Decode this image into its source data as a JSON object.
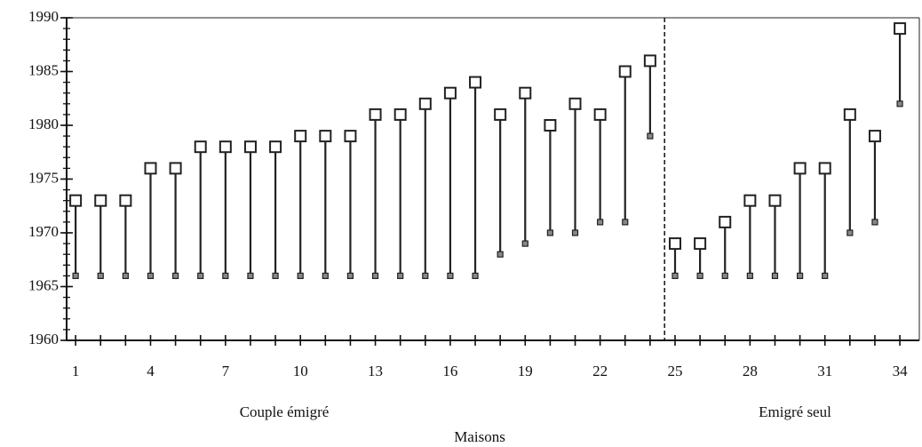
{
  "chart_data": {
    "type": "range",
    "x": [
      1,
      2,
      3,
      4,
      5,
      6,
      7,
      8,
      9,
      10,
      11,
      12,
      13,
      14,
      15,
      16,
      17,
      18,
      19,
      20,
      21,
      22,
      23,
      24,
      25,
      26,
      27,
      28,
      29,
      30,
      31,
      32,
      33,
      34
    ],
    "series": [
      {
        "color": "#222",
        "values": [
          1966,
          1966,
          1966,
          1966,
          1966,
          1966,
          1966,
          1966,
          1966,
          1966,
          1966,
          1966,
          1966,
          1966,
          1966,
          1966,
          1966,
          1968,
          1969,
          1970,
          1970,
          1971,
          1971,
          1979,
          1966,
          1966,
          1966,
          1966,
          1966,
          1966,
          1966,
          1970,
          1971,
          1982
        ]
      },
      {
        "color": "#222",
        "values": [
          1973,
          1973,
          1973,
          1976,
          1976,
          1978,
          1978,
          1978,
          1978,
          1979,
          1979,
          1979,
          1981,
          1981,
          1982,
          1983,
          1984,
          1981,
          1983,
          1980,
          1982,
          1981,
          1985,
          1986,
          1969,
          1969,
          1971,
          1973,
          1973,
          1976,
          1976,
          1981,
          1979,
          1989
        ]
      }
    ],
    "xlim": [
      0.64,
      34.78
    ],
    "xticks": [
      1,
      4,
      7,
      10,
      13,
      16,
      19,
      22,
      25,
      28,
      31,
      34
    ],
    "xminorticks": [
      1,
      2,
      3,
      4,
      5,
      6,
      7,
      8,
      9,
      10,
      11,
      12,
      13,
      14,
      15,
      16,
      17,
      18,
      19,
      20,
      21,
      22,
      23,
      24,
      25,
      26,
      27,
      28,
      29,
      30,
      31,
      32,
      33,
      34
    ],
    "ylim": [
      1960,
      1990
    ],
    "yticks": [
      1960,
      1965,
      1970,
      1975,
      1980,
      1985,
      1990
    ],
    "yminorticks": [
      1960,
      1961,
      1962,
      1963,
      1964,
      1965,
      1966,
      1967,
      1968,
      1969,
      1970,
      1971,
      1972,
      1973,
      1974,
      1975,
      1976,
      1977,
      1978,
      1979,
      1980,
      1981,
      1982,
      1983,
      1984,
      1985,
      1986,
      1987,
      1988,
      1989,
      1990
    ],
    "divider": 24.58,
    "groups": [
      "Couple émigré",
      "Emigré seul"
    ],
    "xlabel": "Maisons"
  }
}
